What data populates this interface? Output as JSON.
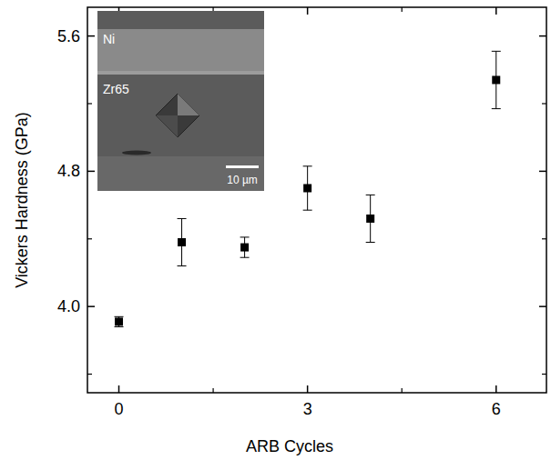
{
  "chart_data": {
    "type": "scatter",
    "x_label": "ARB Cycles",
    "y_label": "Vickers Hardness (GPa)",
    "x": [
      0,
      1,
      2,
      3,
      4,
      6
    ],
    "values": [
      3.91,
      4.38,
      4.35,
      4.7,
      4.52,
      5.34
    ],
    "errors": [
      0.03,
      0.14,
      0.06,
      0.13,
      0.14,
      0.17
    ],
    "color": "#000000",
    "marker": "square",
    "xlim": [
      -0.5,
      6.8
    ],
    "xticks": [
      0,
      3,
      6
    ],
    "ylim": [
      3.49,
      5.77
    ],
    "yticks": [
      {
        "value": 4,
        "label": "4.0"
      },
      4.8,
      5.6
    ],
    "grid": false,
    "annotations": [
      "Ni",
      "Zr65",
      "10 µm"
    ]
  }
}
